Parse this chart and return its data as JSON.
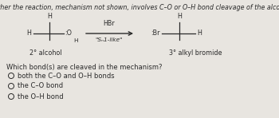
{
  "title": "Indicate whether the reaction, mechanism not shown, involves C–O or O–H bond cleavage of the alcohol molecule.",
  "question": "Which bond(s) are cleaved in the mechanism?",
  "options": [
    "both the C–O and O–H bonds",
    "the C–O bond",
    "the O–H bond"
  ],
  "reagent": "HBr",
  "mechanism": "\"Sₙ1-like\"",
  "left_label": "2° alcohol",
  "right_label": "3° alkyl bromide",
  "bg_color": "#e8e5e0",
  "text_color": "#2a2a2a",
  "title_fontsize": 5.8,
  "body_fontsize": 6.0,
  "small_fontsize": 5.8,
  "mol_fontsize": 5.8
}
